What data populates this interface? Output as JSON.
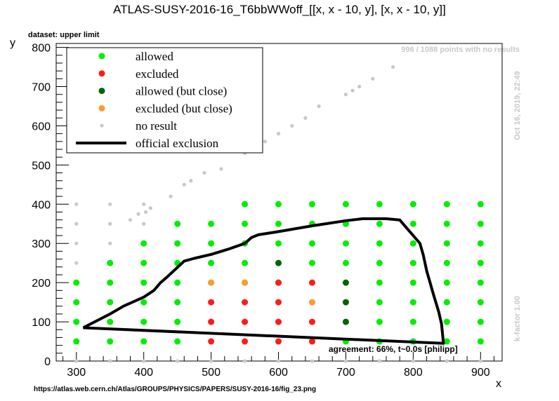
{
  "header": {
    "title": "ATLAS-SUSY-2016-16_T6bbWWoff_[[x, x - 10, y], [x, x - 10, y]]",
    "dataset_label": "dataset: upper limit",
    "points_note": "996 / 1088 points with no results",
    "date_note": "Oct 16, 2019, 22:49",
    "kfactor_note": "k-factor 1.00",
    "agreement_note": "agreement: 66%, t~0.0s [philipp]",
    "source_url": "https://atlas.web.cern.ch/Atlas/GROUPS/PHYSICS/PAPERS/SUSY-2016-16/fig_23.png"
  },
  "colors": {
    "allowed": "#00ee00",
    "excluded": "#ff1a1a",
    "allowed_close": "#006400",
    "excluded_close": "#ff9933",
    "no_result": "#c8c8c8",
    "official_exclusion": "#000000"
  },
  "chart_data": {
    "type": "scatter",
    "title": "ATLAS-SUSY-2016-16_T6bbWWoff_[[x, x - 10, y], [x, x - 10, y]]",
    "xlabel": "x",
    "ylabel": "y",
    "xlim": [
      270,
      932
    ],
    "ylim": [
      0,
      810
    ],
    "xticks": [
      300,
      400,
      500,
      600,
      700,
      800,
      900
    ],
    "yticks": [
      0,
      100,
      200,
      300,
      400,
      500,
      600,
      700,
      800
    ],
    "grid": false,
    "legend_position": "top-left",
    "legend": [
      {
        "label": "allowed",
        "key": "allowed",
        "kind": "marker"
      },
      {
        "label": "excluded",
        "key": "excluded",
        "kind": "marker"
      },
      {
        "label": "allowed (but close)",
        "key": "allowed_close",
        "kind": "marker"
      },
      {
        "label": "excluded (but close)",
        "key": "excluded_close",
        "kind": "marker"
      },
      {
        "label": "no result",
        "key": "no_result",
        "kind": "small-marker"
      },
      {
        "label": "official exclusion",
        "key": "official_exclusion",
        "kind": "line"
      }
    ],
    "series": [
      {
        "name": "allowed",
        "key": "allowed",
        "points": [
          [
            300,
            50
          ],
          [
            300,
            100
          ],
          [
            300,
            150
          ],
          [
            300,
            200
          ],
          [
            350,
            50
          ],
          [
            350,
            100
          ],
          [
            350,
            150
          ],
          [
            350,
            200
          ],
          [
            350,
            250
          ],
          [
            400,
            50
          ],
          [
            400,
            100
          ],
          [
            400,
            150
          ],
          [
            400,
            200
          ],
          [
            400,
            250
          ],
          [
            400,
            300
          ],
          [
            450,
            50
          ],
          [
            450,
            100
          ],
          [
            450,
            150
          ],
          [
            450,
            200
          ],
          [
            450,
            250
          ],
          [
            450,
            300
          ],
          [
            450,
            350
          ],
          [
            500,
            200
          ],
          [
            500,
            250
          ],
          [
            500,
            300
          ],
          [
            500,
            350
          ],
          [
            550,
            200
          ],
          [
            550,
            250
          ],
          [
            550,
            300
          ],
          [
            550,
            350
          ],
          [
            550,
            400
          ],
          [
            600,
            200
          ],
          [
            600,
            300
          ],
          [
            600,
            350
          ],
          [
            600,
            400
          ],
          [
            650,
            250
          ],
          [
            650,
            300
          ],
          [
            650,
            350
          ],
          [
            650,
            400
          ],
          [
            700,
            50
          ],
          [
            700,
            250
          ],
          [
            700,
            300
          ],
          [
            700,
            350
          ],
          [
            700,
            400
          ],
          [
            750,
            50
          ],
          [
            750,
            100
          ],
          [
            750,
            150
          ],
          [
            750,
            200
          ],
          [
            750,
            250
          ],
          [
            750,
            300
          ],
          [
            750,
            350
          ],
          [
            750,
            400
          ],
          [
            800,
            50
          ],
          [
            800,
            100
          ],
          [
            800,
            150
          ],
          [
            800,
            200
          ],
          [
            800,
            250
          ],
          [
            800,
            300
          ],
          [
            800,
            350
          ],
          [
            800,
            400
          ],
          [
            850,
            50
          ],
          [
            850,
            100
          ],
          [
            850,
            150
          ],
          [
            850,
            200
          ],
          [
            850,
            250
          ],
          [
            850,
            300
          ],
          [
            850,
            350
          ],
          [
            850,
            400
          ],
          [
            900,
            50
          ],
          [
            900,
            100
          ],
          [
            900,
            150
          ],
          [
            900,
            200
          ],
          [
            900,
            250
          ],
          [
            900,
            300
          ],
          [
            900,
            350
          ],
          [
            900,
            400
          ]
        ]
      },
      {
        "name": "excluded",
        "key": "excluded",
        "points": [
          [
            500,
            50
          ],
          [
            500,
            100
          ],
          [
            500,
            150
          ],
          [
            550,
            50
          ],
          [
            550,
            100
          ],
          [
            550,
            150
          ],
          [
            600,
            50
          ],
          [
            600,
            100
          ],
          [
            600,
            150
          ],
          [
            600,
            200
          ],
          [
            650,
            50
          ],
          [
            650,
            100
          ],
          [
            650,
            200
          ]
        ]
      },
      {
        "name": "allowed (but close)",
        "key": "allowed_close",
        "points": [
          [
            600,
            250
          ],
          [
            700,
            100
          ],
          [
            700,
            150
          ],
          [
            700,
            200
          ]
        ]
      },
      {
        "name": "excluded (but close)",
        "key": "excluded_close",
        "points": [
          [
            500,
            200
          ],
          [
            550,
            200
          ],
          [
            650,
            150
          ]
        ]
      },
      {
        "name": "no result",
        "key": "no_result",
        "points": [
          [
            300,
            250
          ],
          [
            300,
            300
          ],
          [
            300,
            350
          ],
          [
            300,
            400
          ],
          [
            350,
            300
          ],
          [
            350,
            350
          ],
          [
            350,
            400
          ],
          [
            380,
            360
          ],
          [
            392,
            375
          ],
          [
            400,
            350
          ],
          [
            400,
            400
          ],
          [
            403,
            380
          ],
          [
            410,
            390
          ],
          [
            440,
            420
          ],
          [
            460,
            450
          ],
          [
            470,
            460
          ],
          [
            490,
            480
          ],
          [
            515,
            490
          ],
          [
            550,
            530
          ],
          [
            580,
            560
          ],
          [
            600,
            580
          ],
          [
            620,
            600
          ],
          [
            640,
            620
          ],
          [
            660,
            650
          ],
          [
            700,
            680
          ],
          [
            710,
            690
          ],
          [
            720,
            700
          ],
          [
            740,
            720
          ],
          [
            770,
            750
          ],
          [
            300,
            0
          ],
          [
            350,
            0
          ],
          [
            400,
            0
          ],
          [
            450,
            0
          ],
          [
            500,
            0
          ],
          [
            550,
            0
          ],
          [
            600,
            0
          ],
          [
            650,
            0
          ],
          [
            700,
            0
          ],
          [
            750,
            0
          ],
          [
            800,
            0
          ],
          [
            850,
            0
          ],
          [
            900,
            0
          ]
        ]
      }
    ],
    "exclusion_line": [
      [
        310,
        85
      ],
      [
        350,
        120
      ],
      [
        370,
        140
      ],
      [
        400,
        163
      ],
      [
        415,
        180
      ],
      [
        425,
        200
      ],
      [
        435,
        215
      ],
      [
        460,
        255
      ],
      [
        475,
        262
      ],
      [
        500,
        272
      ],
      [
        525,
        285
      ],
      [
        550,
        300
      ],
      [
        560,
        315
      ],
      [
        570,
        322
      ],
      [
        600,
        330
      ],
      [
        650,
        345
      ],
      [
        700,
        358
      ],
      [
        725,
        363
      ],
      [
        760,
        363
      ],
      [
        780,
        360
      ],
      [
        790,
        340
      ],
      [
        800,
        320
      ],
      [
        810,
        300
      ],
      [
        815,
        270
      ],
      [
        820,
        230
      ],
      [
        825,
        200
      ],
      [
        830,
        170
      ],
      [
        838,
        125
      ],
      [
        842,
        95
      ],
      [
        845,
        45
      ],
      [
        310,
        85
      ]
    ]
  }
}
